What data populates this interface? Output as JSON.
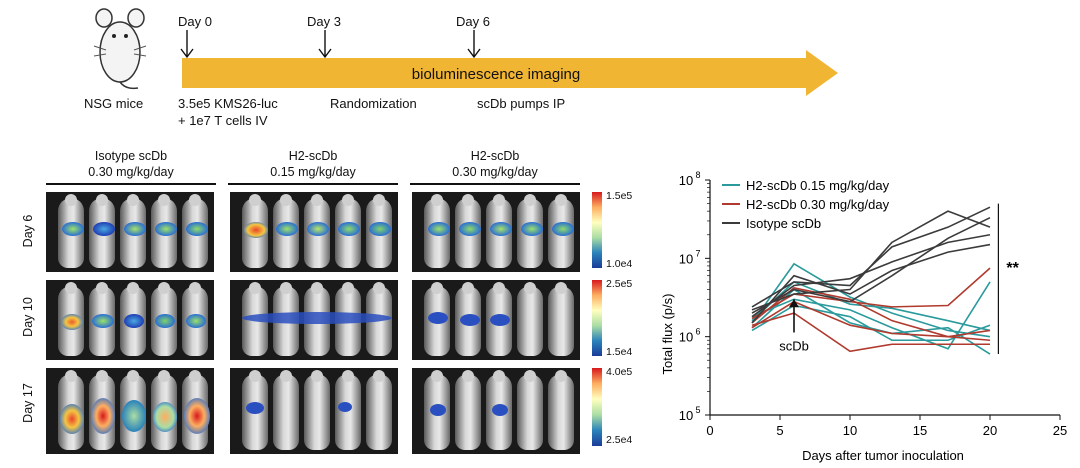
{
  "timeline": {
    "mouse_label": "NSG mice",
    "arrow_text": "bioluminescence imaging",
    "days": [
      {
        "day": "Day 0",
        "desc1": "3.5e5 KMS26-luc",
        "desc2": "+ 1e7 T cells IV"
      },
      {
        "day": "Day 3",
        "desc1": "Randomization",
        "desc2": ""
      },
      {
        "day": "Day 6",
        "desc1": "scDb pumps IP",
        "desc2": ""
      }
    ]
  },
  "imaging": {
    "groups": [
      {
        "name": "Isotype scDb",
        "dose": "0.30 mg/kg/day"
      },
      {
        "name": "H2-scDb",
        "dose": "0.15 mg/kg/day"
      },
      {
        "name": "H2-scDb",
        "dose": "0.30 mg/kg/day"
      }
    ],
    "rows": [
      {
        "label": "Day 6",
        "scale_max": "1.5e5",
        "scale_min": "1.0e4"
      },
      {
        "label": "Day 10",
        "scale_max": "2.5e5",
        "scale_min": "1.5e4"
      },
      {
        "label": "Day 17",
        "scale_max": "4.0e5",
        "scale_min": "2.5e4"
      }
    ]
  },
  "chart_data": {
    "type": "line",
    "xlabel": "Days after tumor inoculation",
    "ylabel": "Total flux (p/s)",
    "xlim": [
      0,
      25
    ],
    "xticks": [
      "0",
      "5",
      "10",
      "15",
      "20",
      "25"
    ],
    "yscale": "log",
    "ylim": [
      100000,
      100000000
    ],
    "yticks": [
      {
        "base": "10",
        "exp": "5"
      },
      {
        "base": "10",
        "exp": "6"
      },
      {
        "base": "10",
        "exp": "7"
      },
      {
        "base": "10",
        "exp": "8"
      }
    ],
    "legend_position": "top-left",
    "annotation": "scDb",
    "significance": "**",
    "x": [
      3,
      6,
      10,
      13,
      17,
      20
    ],
    "series_groups": [
      {
        "name": "H2-scDb 0.15 mg/kg/day",
        "color": "#2a9a9c",
        "lines": [
          [
            1500000,
            8500000,
            3200000,
            2000000,
            1200000,
            1000000
          ],
          [
            1300000,
            4000000,
            1500000,
            1100000,
            1300000,
            600000
          ],
          [
            1800000,
            3000000,
            2200000,
            1300000,
            700000,
            5000000
          ],
          [
            1600000,
            5000000,
            2600000,
            2300000,
            1600000,
            1200000
          ],
          [
            1200000,
            2500000,
            1800000,
            900000,
            900000,
            1400000
          ]
        ]
      },
      {
        "name": "H2-scDb 0.30 mg/kg/day",
        "color": "#b03a2e",
        "lines": [
          [
            1400000,
            2000000,
            650000,
            800000,
            800000,
            800000
          ],
          [
            1700000,
            3500000,
            2800000,
            2400000,
            2500000,
            7500000
          ],
          [
            1500000,
            4200000,
            3000000,
            1600000,
            1000000,
            1200000
          ],
          [
            1300000,
            2800000,
            1400000,
            1100000,
            1000000,
            900000
          ]
        ]
      },
      {
        "name": "Isotype scDb",
        "color": "#3b3b3b",
        "lines": [
          [
            2400000,
            5000000,
            4500000,
            14000000,
            25000000,
            45000000
          ],
          [
            1800000,
            4500000,
            5500000,
            9000000,
            16000000,
            20000000
          ],
          [
            2000000,
            4000000,
            2800000,
            6000000,
            18000000,
            33000000
          ],
          [
            1500000,
            6000000,
            3500000,
            7000000,
            12000000,
            15000000
          ],
          [
            2200000,
            3500000,
            4000000,
            16000000,
            40000000,
            25000000
          ]
        ]
      }
    ]
  }
}
